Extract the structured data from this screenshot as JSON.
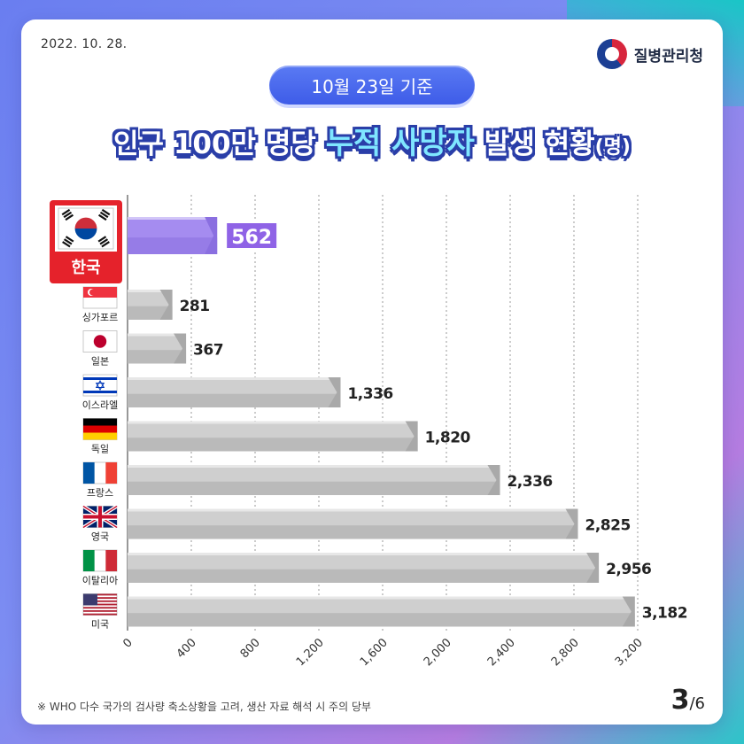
{
  "date": "2022. 10. 28.",
  "agency": "질병관리청",
  "badge": "10월 23일 기준",
  "title": {
    "prefix": "인구 100만 명당",
    "emphasis": "누적 사망자",
    "suffix": "발생 현황",
    "unit": "(명)"
  },
  "chart_data": {
    "type": "bar",
    "orientation": "horizontal",
    "categories": [
      "한국",
      "싱가포르",
      "일본",
      "이스라엘",
      "독일",
      "프랑스",
      "영국",
      "이탈리아",
      "미국"
    ],
    "values": [
      562,
      281,
      367,
      1336,
      1820,
      2336,
      2825,
      2956,
      3182
    ],
    "value_labels": [
      "562",
      "281",
      "367",
      "1,336",
      "1,820",
      "2,336",
      "2,825",
      "2,956",
      "3,182"
    ],
    "highlight": "한국",
    "xlim": [
      0,
      3200
    ],
    "xticks": [
      0,
      400,
      800,
      1200,
      1600,
      2000,
      2400,
      2800,
      3200
    ],
    "xtick_labels": [
      "0",
      "400",
      "800",
      "1,200",
      "1,600",
      "2,000",
      "2,400",
      "2,800",
      "3,200"
    ],
    "grid": true,
    "flags": [
      "flag-south-korea-icon",
      "flag-singapore-icon",
      "flag-japan-icon",
      "flag-israel-icon",
      "flag-germany-icon",
      "flag-france-icon",
      "flag-uk-icon",
      "flag-italy-icon",
      "flag-usa-icon"
    ],
    "colors": {
      "highlight_bar": "#a58cf0",
      "highlight_label_bg": "#8f63e6",
      "bar": "#cfcfcf",
      "bar_shadow": "#a9a9a9",
      "korea_box": "#e5222b"
    }
  },
  "footnote": "※ WHO 다수 국가의 검사량 축소상황을 고려, 생산 자료 해석 시 주의 당부",
  "page": {
    "current": "3",
    "total": "/6"
  }
}
